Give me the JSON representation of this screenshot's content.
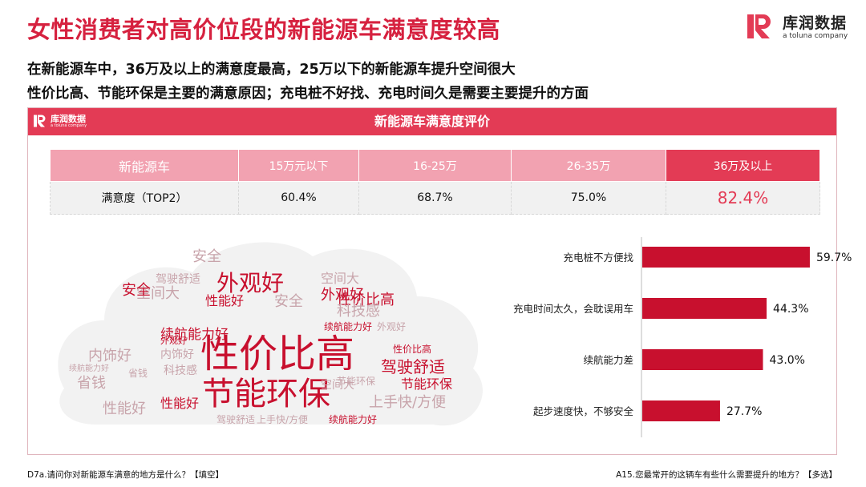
{
  "header": {
    "title": "女性消费者对高价位段的新能源车满意度较高",
    "subtitle_lines": [
      "在新能源车中，36万及以上的满意度最高，25万以下的新能源车提升空间很大",
      "性价比高、节能环保是主要的满意原因；充电桩不好找、充电时间久是需要主要提升的方面"
    ]
  },
  "brand": {
    "name": "库润数据",
    "sub": "a toluna company",
    "color": "#e33b55"
  },
  "panel": {
    "title": "新能源车满意度评价"
  },
  "satisfaction_table": {
    "header": [
      "新能源车",
      "15万元以下",
      "16-25万",
      "26-35万",
      "36万及以上"
    ],
    "row": [
      "满意度（TOP2）",
      "60.4%",
      "68.7%",
      "75.0%",
      "82.4%"
    ],
    "highlight_index": 4
  },
  "word_cloud": {
    "words": [
      {
        "text": "性价比高",
        "weight": 10
      },
      {
        "text": "节能环保",
        "weight": 9
      },
      {
        "text": "外观好",
        "weight": 6
      },
      {
        "text": "性价比高",
        "weight": 5
      },
      {
        "text": "驾驶舒适",
        "weight": 4
      },
      {
        "text": "安全",
        "weight": 4
      },
      {
        "text": "空间大",
        "weight": 4
      },
      {
        "text": "性能好",
        "weight": 4
      },
      {
        "text": "续航能力好",
        "weight": 4
      },
      {
        "text": "外观好",
        "weight": 4
      },
      {
        "text": "安全",
        "weight": 4
      },
      {
        "text": "空间大",
        "weight": 3
      },
      {
        "text": "科技感",
        "weight": 3
      },
      {
        "text": "内饰好",
        "weight": 3
      },
      {
        "text": "节能环保",
        "weight": 3
      },
      {
        "text": "上手快/方便",
        "weight": 3
      },
      {
        "text": "性能好",
        "weight": 3
      },
      {
        "text": "省钱",
        "weight": 3
      },
      {
        "text": "驾驶舒适",
        "weight": 2
      },
      {
        "text": "性能好",
        "weight": 2
      },
      {
        "text": "续航能力好",
        "weight": 2
      },
      {
        "text": "科技感",
        "weight": 2
      },
      {
        "text": "内饰好",
        "weight": 2
      },
      {
        "text": "省钱",
        "weight": 2
      },
      {
        "text": "空间大",
        "weight": 2
      },
      {
        "text": "安全",
        "weight": 1
      },
      {
        "text": "节能环保",
        "weight": 1
      },
      {
        "text": "性价比高",
        "weight": 1
      },
      {
        "text": "外观好",
        "weight": 1
      },
      {
        "text": "续航能力好",
        "weight": 1
      },
      {
        "text": "驾驶舒适",
        "weight": 1
      },
      {
        "text": "上手快/方便",
        "weight": 1
      },
      {
        "text": "续航能力好",
        "weight": 1
      },
      {
        "text": "外观好",
        "weight": 1
      }
    ]
  },
  "chart_data": {
    "type": "bar",
    "orientation": "horizontal",
    "categories": [
      "充电桩不方便找",
      "充电时间太久，会耽误用车",
      "续航能力差",
      "起步速度快，不够安全"
    ],
    "values": [
      59.7,
      44.3,
      43.0,
      27.7
    ],
    "value_labels": [
      "59.7%",
      "44.3%",
      "43.0%",
      "27.7%"
    ],
    "xlim": [
      0,
      100
    ],
    "bar_color": "#c8102e"
  },
  "footer": {
    "left": "D7a.请问你对新能源车满意的地方是什么？【填空】",
    "right": "A15.您最常开的这辆车有些什么需要提升的地方？【多选】"
  }
}
